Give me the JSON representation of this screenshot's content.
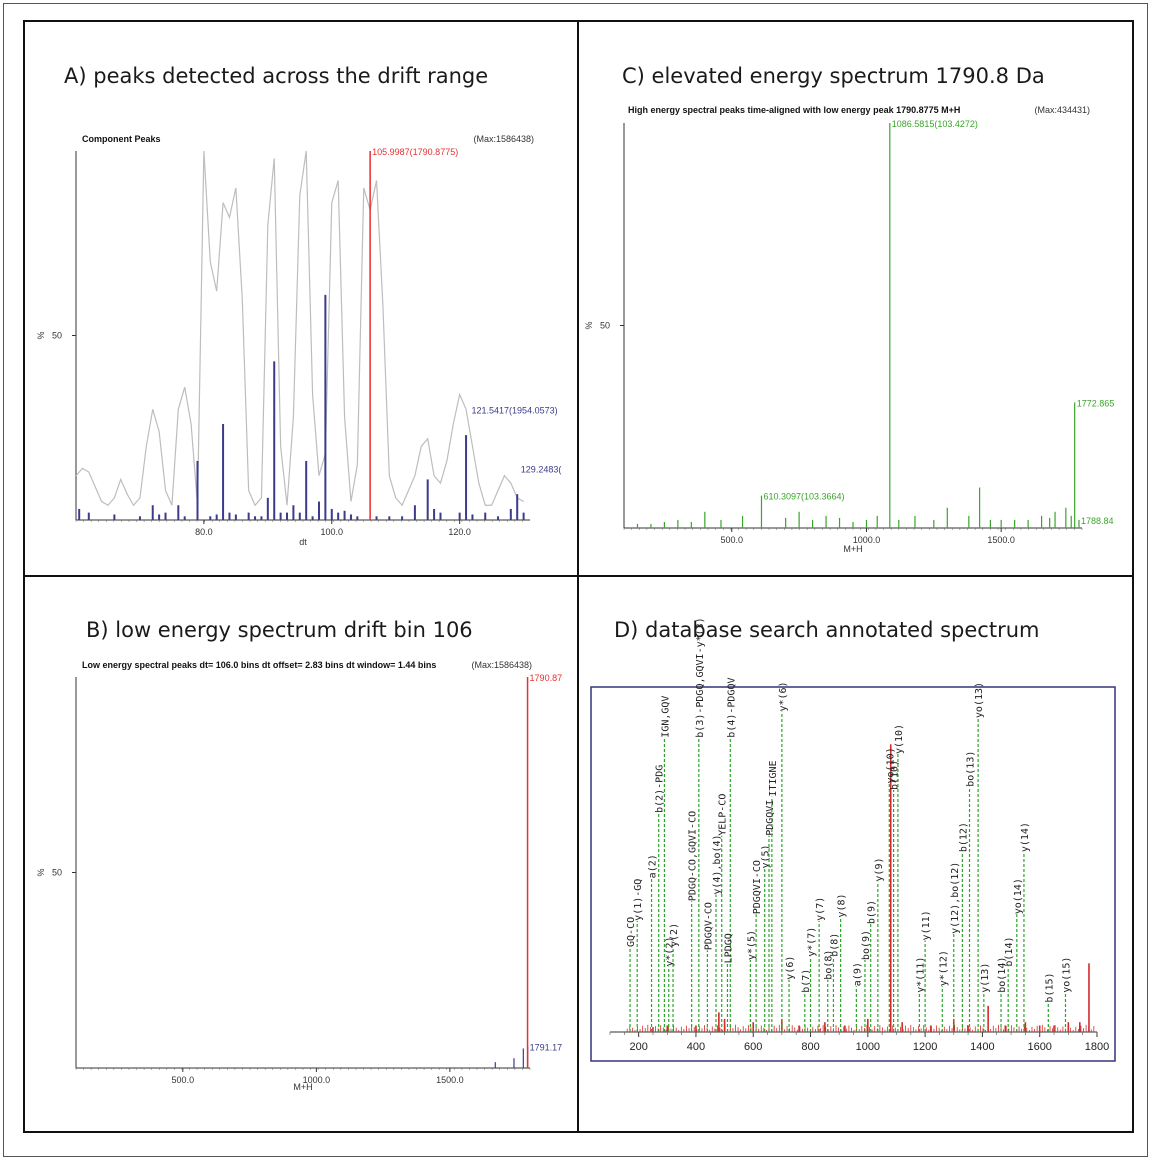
{
  "panels": {
    "A": {
      "title": "A) peaks detected across the drift range"
    },
    "B": {
      "title": "B) low energy spectrum drift bin 106"
    },
    "C": {
      "title": "C) elevated energy spectrum 1790.8 Da"
    },
    "D": {
      "title": "D) database search annotated spectrum"
    }
  },
  "chart_data": [
    {
      "id": "A",
      "type": "bar",
      "title": "Component Peaks",
      "max_label": "(Max:1586438)",
      "xlabel": "dt",
      "ylabel": "%",
      "xlim": [
        60,
        131
      ],
      "ylim": [
        0,
        100
      ],
      "xticks": [
        "80.0",
        "100.0",
        "120.0"
      ],
      "yticks": [
        "50"
      ],
      "colors": {
        "line": "#bdbdbd",
        "bars": "#3b3b8c",
        "highlight": "#e83030"
      },
      "envelope": [
        [
          60,
          12
        ],
        [
          61,
          14
        ],
        [
          62,
          13
        ],
        [
          63,
          9
        ],
        [
          64,
          5
        ],
        [
          65,
          4
        ],
        [
          66,
          6
        ],
        [
          67,
          11
        ],
        [
          68,
          7
        ],
        [
          69,
          4
        ],
        [
          70,
          6
        ],
        [
          71,
          20
        ],
        [
          72,
          30
        ],
        [
          73,
          24
        ],
        [
          74,
          8
        ],
        [
          75,
          4
        ],
        [
          76,
          30
        ],
        [
          77,
          36
        ],
        [
          78,
          26
        ],
        [
          79,
          4
        ],
        [
          80,
          100
        ],
        [
          81,
          70
        ],
        [
          82,
          62
        ],
        [
          83,
          86
        ],
        [
          84,
          82
        ],
        [
          85,
          90
        ],
        [
          86,
          60
        ],
        [
          87,
          8
        ],
        [
          88,
          4
        ],
        [
          89,
          6
        ],
        [
          90,
          80
        ],
        [
          91,
          98
        ],
        [
          92,
          20
        ],
        [
          93,
          4
        ],
        [
          94,
          28
        ],
        [
          95,
          88
        ],
        [
          96,
          100
        ],
        [
          97,
          34
        ],
        [
          98,
          12
        ],
        [
          99,
          18
        ],
        [
          100,
          86
        ],
        [
          101,
          92
        ],
        [
          102,
          28
        ],
        [
          103,
          5
        ],
        [
          104,
          15
        ],
        [
          105,
          90
        ],
        [
          106,
          84
        ],
        [
          107,
          92
        ],
        [
          108,
          58
        ],
        [
          109,
          12
        ],
        [
          110,
          6
        ],
        [
          111,
          4
        ],
        [
          112,
          8
        ],
        [
          113,
          12
        ],
        [
          114,
          20
        ],
        [
          115,
          22
        ],
        [
          116,
          12
        ],
        [
          117,
          10
        ],
        [
          118,
          16
        ],
        [
          119,
          26
        ],
        [
          120,
          34
        ],
        [
          121,
          30
        ],
        [
          122,
          20
        ],
        [
          123,
          10
        ],
        [
          124,
          4
        ],
        [
          125,
          4
        ],
        [
          126,
          8
        ],
        [
          127,
          12
        ],
        [
          128,
          10
        ],
        [
          129,
          6
        ],
        [
          130,
          5
        ]
      ],
      "bars": [
        [
          60.5,
          3
        ],
        [
          62,
          2
        ],
        [
          66,
          1.5
        ],
        [
          70,
          1
        ],
        [
          72,
          4
        ],
        [
          73,
          1.5
        ],
        [
          74,
          2
        ],
        [
          76,
          4
        ],
        [
          77,
          1
        ],
        [
          79,
          16
        ],
        [
          81,
          1
        ],
        [
          82,
          1.5
        ],
        [
          83,
          26
        ],
        [
          84,
          2
        ],
        [
          85,
          1.5
        ],
        [
          87,
          2
        ],
        [
          88,
          1
        ],
        [
          89,
          1
        ],
        [
          90,
          6
        ],
        [
          91,
          43
        ],
        [
          92,
          2
        ],
        [
          93,
          2
        ],
        [
          94,
          4
        ],
        [
          95,
          2
        ],
        [
          96,
          16
        ],
        [
          97,
          1
        ],
        [
          98,
          5
        ],
        [
          99,
          61
        ],
        [
          100,
          3
        ],
        [
          101,
          2
        ],
        [
          102,
          2.5
        ],
        [
          103,
          1.5
        ],
        [
          104,
          1
        ],
        [
          107,
          1
        ],
        [
          109,
          1
        ],
        [
          111,
          1
        ],
        [
          113,
          4
        ],
        [
          115,
          11
        ],
        [
          116,
          3
        ],
        [
          117,
          2
        ],
        [
          120,
          2
        ],
        [
          121,
          23
        ],
        [
          122,
          1.5
        ],
        [
          124,
          2
        ],
        [
          126,
          1
        ],
        [
          128,
          3
        ],
        [
          129,
          7
        ],
        [
          130,
          2
        ]
      ],
      "highlight_bar": [
        105.9987,
        100
      ],
      "labels": [
        {
          "x": 105.9987,
          "y": 100,
          "text": "105.9987(1790.8775)",
          "color": "#e83030"
        },
        {
          "x": 121.5417,
          "y": 30,
          "text": "121.5417(1954.0573)",
          "color": "#3b3b8c"
        },
        {
          "x": 129.2483,
          "y": 14,
          "text": "129.2483(",
          "color": "#3b3b8c"
        }
      ]
    },
    {
      "id": "B",
      "type": "bar",
      "title": "Low energy spectral peaks dt= 106.0 bins dt offset= 2.83 bins dt window= 1.44 bins",
      "max_label": "(Max:1586438)",
      "xlabel": "M+H",
      "ylabel": "%",
      "xlim": [
        100,
        1800
      ],
      "ylim": [
        0,
        100
      ],
      "xticks": [
        "500.0",
        "1000.0",
        "1500.0"
      ],
      "yticks": [
        "50"
      ],
      "colors": {
        "bars": "#3b3b8c",
        "highlight": "#e83030"
      },
      "bars": [
        [
          1670,
          1.5
        ],
        [
          1740,
          2.5
        ],
        [
          1775,
          5
        ],
        [
          1791.17,
          5.5
        ]
      ],
      "highlight_bar": [
        1790.87,
        100
      ],
      "labels": [
        {
          "x": 1790.87,
          "y": 100,
          "text": "1790.87",
          "color": "#e83030"
        },
        {
          "x": 1791.17,
          "y": 5.5,
          "text": "1791.17",
          "color": "#3b3b8c"
        }
      ]
    },
    {
      "id": "C",
      "type": "bar",
      "title": "High energy spectral peaks time-aligned with low energy peak 1790.8775 M+H",
      "max_label": "(Max:434431)",
      "xlabel": "M+H",
      "ylabel": "%",
      "xlim": [
        100,
        1800
      ],
      "ylim": [
        0,
        100
      ],
      "xticks": [
        "500.0",
        "1000.0",
        "1500.0"
      ],
      "yticks": [
        "50"
      ],
      "colors": {
        "bars": "#3aa52a"
      },
      "bars": [
        [
          1086.5815,
          100
        ],
        [
          1772.865,
          31
        ],
        [
          610.3097,
          8
        ],
        [
          1788.84,
          2
        ],
        [
          1420,
          10
        ],
        [
          1180,
          3
        ],
        [
          1300,
          5
        ],
        [
          1380,
          3
        ],
        [
          1500,
          2
        ],
        [
          1550,
          2
        ],
        [
          1650,
          3
        ],
        [
          1700,
          4
        ],
        [
          1740,
          5
        ],
        [
          1760,
          3
        ],
        [
          540,
          3
        ],
        [
          460,
          2
        ],
        [
          400,
          4
        ],
        [
          350,
          1.5
        ],
        [
          300,
          2
        ],
        [
          250,
          1.5
        ],
        [
          700,
          2.5
        ],
        [
          750,
          4
        ],
        [
          800,
          2
        ],
        [
          850,
          3
        ],
        [
          900,
          2.5
        ],
        [
          950,
          1.5
        ],
        [
          1000,
          2
        ],
        [
          1040,
          3
        ],
        [
          1120,
          2
        ],
        [
          1250,
          2
        ],
        [
          1460,
          2
        ],
        [
          1600,
          2
        ],
        [
          1680,
          2.5
        ],
        [
          200,
          1
        ],
        [
          150,
          1
        ]
      ],
      "labels": [
        {
          "x": 1086.5815,
          "y": 100,
          "text": "1086.5815(103.4272)",
          "color": "#3aa52a"
        },
        {
          "x": 1772.865,
          "y": 31,
          "text": "1772.865",
          "color": "#3aa52a"
        },
        {
          "x": 610.3097,
          "y": 8,
          "text": "610.3097(103.3664)",
          "color": "#3aa52a"
        },
        {
          "x": 1788.84,
          "y": 2,
          "text": "1788.84",
          "color": "#3aa52a"
        }
      ]
    },
    {
      "id": "D",
      "type": "bar",
      "xlim": [
        100,
        1800
      ],
      "ylim": [
        0,
        100
      ],
      "xticks": [
        "200",
        "400",
        "600",
        "800",
        "1000",
        "1200",
        "1400",
        "1600",
        "1800"
      ],
      "colors": {
        "bars": "#d62a2a",
        "annotations": "#2aa52a",
        "frame": "#33337a"
      },
      "bars": [
        [
          1080,
          88
        ],
        [
          1772,
          21
        ],
        [
          1420,
          8
        ],
        [
          1000,
          4
        ],
        [
          480,
          6
        ],
        [
          500,
          4
        ],
        [
          600,
          3
        ],
        [
          700,
          4
        ],
        [
          850,
          3
        ],
        [
          1120,
          3
        ],
        [
          1300,
          4
        ],
        [
          1550,
          3
        ],
        [
          1650,
          2
        ],
        [
          1700,
          3
        ],
        [
          300,
          2
        ],
        [
          250,
          1.5
        ],
        [
          400,
          2
        ],
        [
          760,
          2
        ],
        [
          920,
          2
        ],
        [
          1220,
          2
        ],
        [
          1350,
          2
        ],
        [
          1480,
          2
        ],
        [
          1600,
          2
        ],
        [
          1740,
          3
        ]
      ],
      "annotations": [
        {
          "x": 170,
          "text": "GQ-CO",
          "top": 26
        },
        {
          "x": 195,
          "text": "y(1)-GQ",
          "top": 34
        },
        {
          "x": 245,
          "text": "a(2)",
          "top": 47
        },
        {
          "x": 270,
          "text": "b(2)-PDG",
          "top": 67
        },
        {
          "x": 290,
          "text": "IGN,GQV",
          "top": 90
        },
        {
          "x": 305,
          "text": "y*(2)",
          "top": 20
        },
        {
          "x": 320,
          "text": "y(2)",
          "top": 26
        },
        {
          "x": 385,
          "text": "PDGQ-CO,GQVI-CO",
          "top": 40
        },
        {
          "x": 410,
          "text": "b(3)-PDGQ,GQVI-y*(3)",
          "top": 90
        },
        {
          "x": 440,
          "text": "PDGQV-CO",
          "top": 25
        },
        {
          "x": 470,
          "text": "y(4),bo(4)",
          "top": 42
        },
        {
          "x": 490,
          "text": "YELP-CO",
          "top": 60
        },
        {
          "x": 520,
          "text": "b(4)-PDGQV",
          "top": 90
        },
        {
          "x": 510,
          "text": "LPDGQ",
          "top": 21
        },
        {
          "x": 590,
          "text": "y*(5)",
          "top": 22
        },
        {
          "x": 610,
          "text": "PDGQVI-CO",
          "top": 36
        },
        {
          "x": 640,
          "text": "y(5)",
          "top": 50
        },
        {
          "x": 655,
          "text": "PDGQVI",
          "top": 60
        },
        {
          "x": 665,
          "text": "ITIGNE",
          "top": 72
        },
        {
          "x": 700,
          "text": "y*(6)",
          "top": 98
        },
        {
          "x": 725,
          "text": "y(6)",
          "top": 16
        },
        {
          "x": 780,
          "text": "b(7)",
          "top": 12
        },
        {
          "x": 800,
          "text": "y*(7)",
          "top": 23
        },
        {
          "x": 830,
          "text": "y(7)",
          "top": 34
        },
        {
          "x": 860,
          "text": "bo(8)",
          "top": 16
        },
        {
          "x": 880,
          "text": "b(8)",
          "top": 23
        },
        {
          "x": 905,
          "text": "y(8)",
          "top": 35
        },
        {
          "x": 960,
          "text": "a(9)",
          "top": 14
        },
        {
          "x": 990,
          "text": "bo(9)",
          "top": 22
        },
        {
          "x": 1010,
          "text": "b(9)",
          "top": 33
        },
        {
          "x": 1035,
          "text": "y(9)",
          "top": 46
        },
        {
          "x": 1075,
          "text": "yo(10)",
          "top": 76
        },
        {
          "x": 1090,
          "text": "b(10)",
          "top": 74
        },
        {
          "x": 1105,
          "text": "y(10)",
          "top": 85
        },
        {
          "x": 1180,
          "text": "y*(11)",
          "top": 12
        },
        {
          "x": 1200,
          "text": "y(11)",
          "top": 28
        },
        {
          "x": 1260,
          "text": "y*(12)",
          "top": 14
        },
        {
          "x": 1300,
          "text": "y(12),bo(12)",
          "top": 30
        },
        {
          "x": 1330,
          "text": "b(12)",
          "top": 55
        },
        {
          "x": 1355,
          "text": "bo(13)",
          "top": 75
        },
        {
          "x": 1385,
          "text": "yo(13)",
          "top": 96
        },
        {
          "x": 1405,
          "text": "y(13)",
          "top": 12
        },
        {
          "x": 1465,
          "text": "bo(14)",
          "top": 12
        },
        {
          "x": 1490,
          "text": "b(14)",
          "top": 20
        },
        {
          "x": 1520,
          "text": "yo(14)",
          "top": 36
        },
        {
          "x": 1545,
          "text": "y(14)",
          "top": 55
        },
        {
          "x": 1630,
          "text": "b(15)",
          "top": 9
        },
        {
          "x": 1690,
          "text": "yo(15)",
          "top": 12
        }
      ]
    }
  ]
}
